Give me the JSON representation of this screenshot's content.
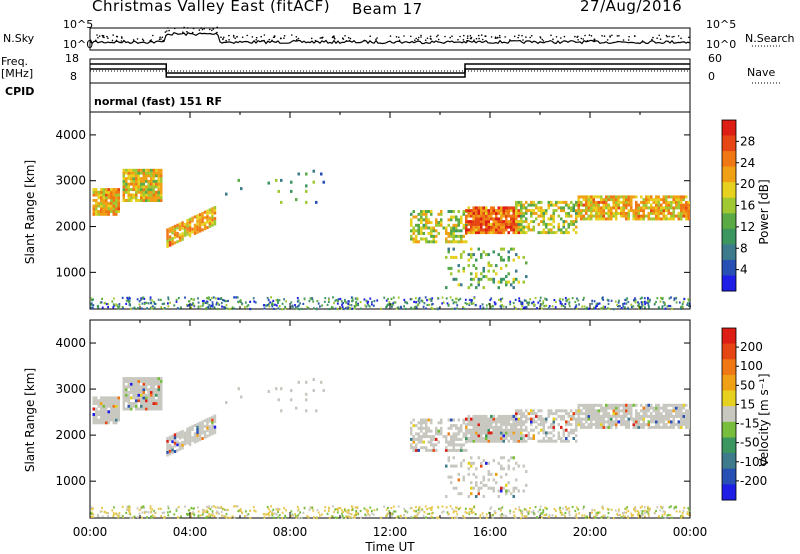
{
  "header": {
    "station": "Christmas Valley East (fitACF)",
    "beam": "Beam 17",
    "date": "27/Aug/2016"
  },
  "top_panel": {
    "left_label_sky": "N.Sky",
    "left_label_freq": "Freq.",
    "left_label_freq_unit": "[MHz]",
    "left_label_cpid": "CPID",
    "right_label_search": "N.Search",
    "right_label_nave": "Nave",
    "nsky_ticks": [
      "10^5",
      "10^0"
    ],
    "nsearch_ticks": [
      "10^5",
      "10^0"
    ],
    "freq_ticks": [
      "18",
      "8"
    ],
    "nave_ticks": [
      "60",
      "0"
    ],
    "cpid_text": "normal (fast) 151 RF"
  },
  "colors": {
    "power_scale": [
      "#1e1ee6",
      "#2850b4",
      "#3c7a8c",
      "#3c9660",
      "#5aaa46",
      "#a0c832",
      "#e6d21e",
      "#f0a014",
      "#f07814",
      "#e64614",
      "#dc1e14"
    ],
    "velocity_scale": [
      "#1e1ee6",
      "#2850b4",
      "#3c7a8c",
      "#3c9660",
      "#78be3c",
      "#c8c8c0",
      "#e6d21e",
      "#f0a014",
      "#f07814",
      "#e64614",
      "#dc1e14"
    ],
    "ground_scatter": "#c8c8c0"
  },
  "chart_data": [
    {
      "type": "heatmap",
      "title": "",
      "ylabel": "Slant Range [km]",
      "xlabel": "",
      "colorbar_label": "Power [dB]",
      "colorbar_ticks": [
        "28",
        "24",
        "20",
        "16",
        "12",
        "8",
        "4"
      ],
      "colorbar_range": [
        0,
        30
      ],
      "ylim": [
        200,
        4500
      ],
      "yticks": [
        "1000",
        "2000",
        "3000",
        "4000"
      ],
      "xlim": [
        0,
        24
      ]
    },
    {
      "type": "heatmap",
      "title": "",
      "ylabel": "Slant Range [km]",
      "xlabel": "Time UT",
      "colorbar_label": "Velocity [m s⁻¹]",
      "colorbar_ticks": [
        "200",
        "100",
        "50",
        "15",
        "-15",
        "-50",
        "-100",
        "-200"
      ],
      "colorbar_range": [
        -250,
        250
      ],
      "ylim": [
        200,
        4500
      ],
      "yticks": [
        "1000",
        "2000",
        "3000",
        "4000"
      ],
      "xticks": [
        "00:00",
        "04:00",
        "08:00",
        "12:00",
        "16:00",
        "20:00",
        "00:00"
      ],
      "xlim": [
        0,
        24
      ]
    }
  ]
}
